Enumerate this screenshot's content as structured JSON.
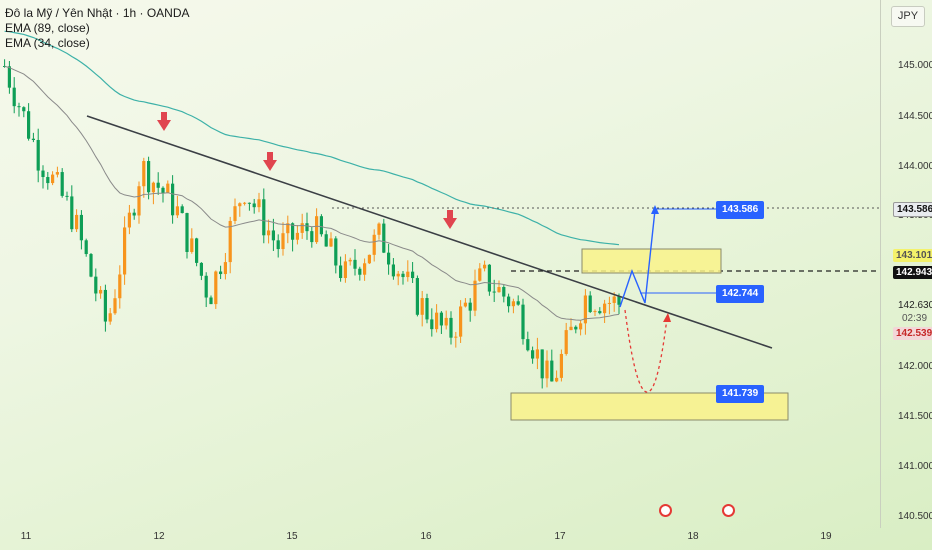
{
  "legend": {
    "symbol": "Đô la Mỹ / Yên Nhật · 1h · OANDA",
    "ema1": "EMA (89, close)",
    "ema2": "EMA (34, close)"
  },
  "currency": "JPY",
  "axis": {
    "y_ticks": [
      "145.000",
      "144.500",
      "144.000",
      "143.500",
      "142.000",
      "141.500",
      "141.000",
      "140.500"
    ],
    "x_ticks": [
      "11",
      "12",
      "15",
      "16",
      "17",
      "18",
      "19"
    ]
  },
  "badges": {
    "target": "143.586",
    "ema89": "143.101",
    "resistance": "142.943",
    "last": "142.630",
    "countdown": "02:39",
    "low": "142.539"
  },
  "labels": {
    "target": "143.586",
    "mid": "142.744",
    "support": "141.739"
  },
  "colors": {
    "up": "#f7941d",
    "down": "#0e9e56",
    "trend": "#3b3f45",
    "ema89": "#3db1a8",
    "ema34": "#7a7a7a",
    "zone": "#f9f28a",
    "arrow_up": "#2962ff",
    "arrow_alt": "#e53935"
  },
  "chart_data": {
    "type": "candlestick",
    "symbol": "USD/JPY",
    "timeframe": "1h",
    "ylim": [
      140.4,
      145.5
    ],
    "x_days": [
      "11",
      "12",
      "15",
      "16",
      "17",
      "18",
      "19"
    ],
    "closes_approx": [
      145.0,
      144.1,
      143.5,
      142.4,
      144.0,
      143.6,
      142.7,
      143.8,
      143.2,
      143.4,
      142.9,
      143.3,
      142.7,
      142.3,
      142.9,
      142.6,
      141.8,
      142.7,
      142.63
    ],
    "indicators": [
      {
        "name": "EMA (89, close)"
      },
      {
        "name": "EMA (34, close)"
      }
    ],
    "levels": [
      143.586,
      143.101,
      142.943,
      142.744,
      142.63,
      142.539,
      141.739
    ]
  }
}
